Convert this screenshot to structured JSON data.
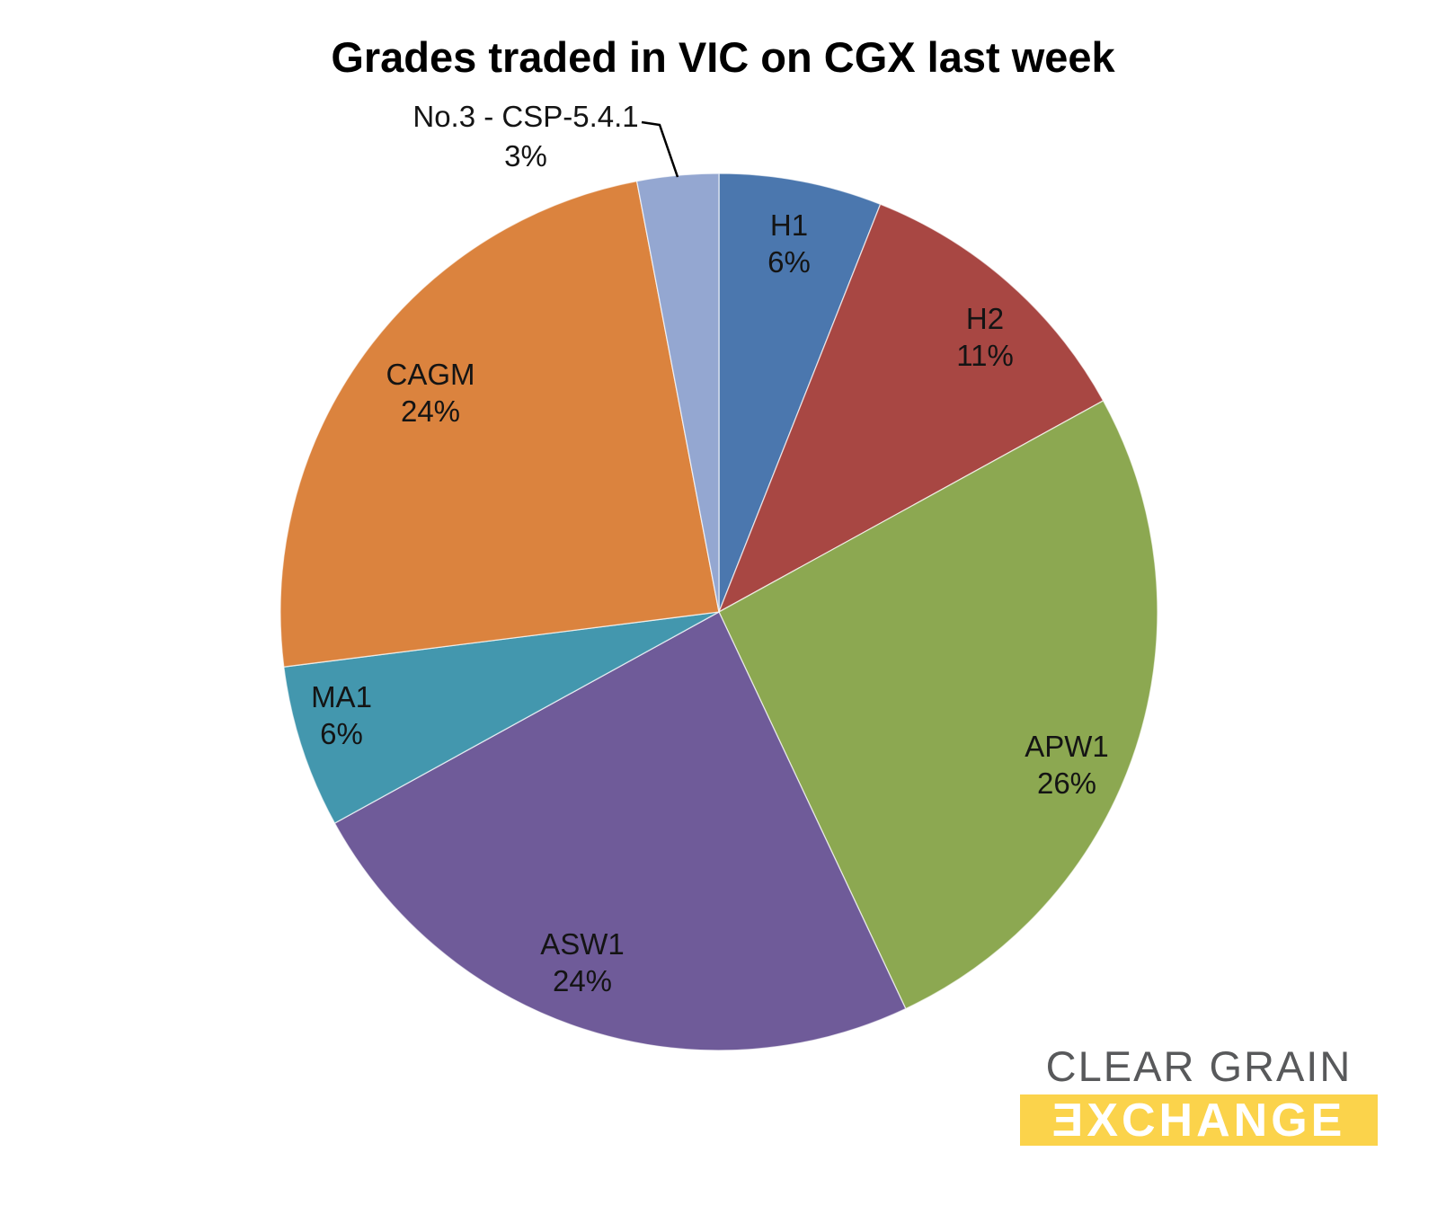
{
  "chart_data": {
    "type": "pie",
    "title": "Grades traded in VIC on CGX last week",
    "legend": "none",
    "label_style": "category name and percent inside slices; smallest slice labelled outside with leader line",
    "start_angle_deg": 0,
    "direction": "clockwise",
    "slices": [
      {
        "label": "H1",
        "value": 6,
        "pct_label": "6%",
        "color": "#4B77AE"
      },
      {
        "label": "H2",
        "value": 11,
        "pct_label": "11%",
        "color": "#A84743"
      },
      {
        "label": "APW1",
        "value": 26,
        "pct_label": "26%",
        "color": "#8CA851"
      },
      {
        "label": "ASW1",
        "value": 24,
        "pct_label": "24%",
        "color": "#6F5B99"
      },
      {
        "label": "MA1",
        "value": 6,
        "pct_label": "6%",
        "color": "#4397AE"
      },
      {
        "label": "CAGM",
        "value": 24,
        "pct_label": "24%",
        "color": "#DB833E"
      },
      {
        "label": "No.3 - CSP-5.4.1",
        "value": 3,
        "pct_label": "3%",
        "color": "#94A7D1",
        "callout": true
      }
    ]
  },
  "logo": {
    "line1": "CLEAR GRAIN",
    "line2": "ƎXCHANGE",
    "line1_color": "#58595B",
    "line2_color": "#FFFFFF",
    "bar_color": "#FBD34B"
  }
}
